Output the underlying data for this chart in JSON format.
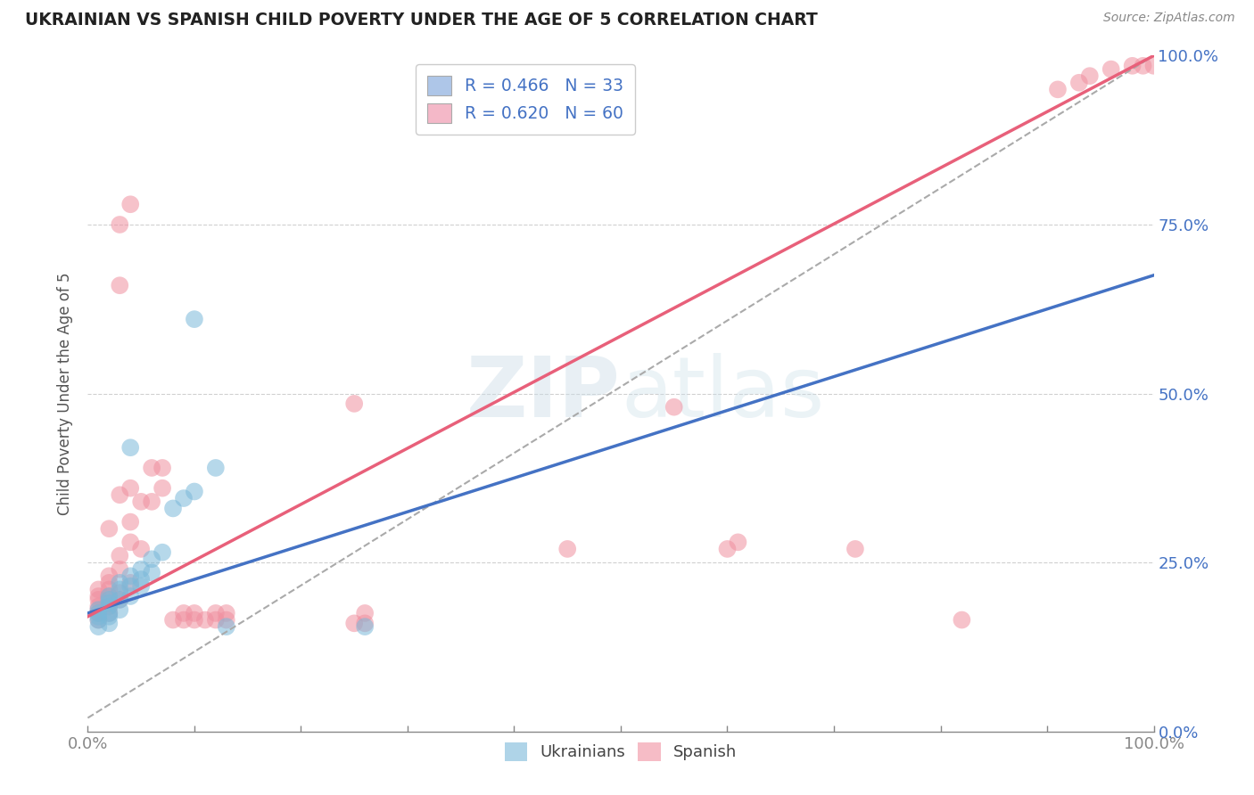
{
  "title": "UKRAINIAN VS SPANISH CHILD POVERTY UNDER THE AGE OF 5 CORRELATION CHART",
  "source_text": "Source: ZipAtlas.com",
  "ylabel": "Child Poverty Under the Age of 5",
  "watermark": "ZIPatlas",
  "legend_entries": [
    {
      "label": "R = 0.466   N = 33",
      "color": "#aec6e8"
    },
    {
      "label": "R = 0.620   N = 60",
      "color": "#f4b8c8"
    }
  ],
  "legend_labels_bottom": [
    "Ukrainians",
    "Spanish"
  ],
  "ukrainian_color": "#7ab8d9",
  "spanish_color": "#f090a0",
  "ukrainian_line_color": "#4472c4",
  "spanish_line_color": "#e8607a",
  "background_color": "#ffffff",
  "grid_color": "#d0d0d0",
  "title_color": "#222222",
  "axis_label_color": "#555555",
  "tick_label_color": "#4472c4",
  "xlim": [
    0,
    1
  ],
  "ylim": [
    0,
    1
  ],
  "xticks": [
    0.0,
    0.1,
    0.2,
    0.3,
    0.4,
    0.5,
    0.6,
    0.7,
    0.8,
    0.9,
    1.0
  ],
  "ytick_positions": [
    0.0,
    0.25,
    0.5,
    0.75,
    1.0
  ],
  "ytick_labels": [
    "0.0%",
    "25.0%",
    "50.0%",
    "75.0%",
    "100.0%"
  ],
  "ukrainian_line_intercept": 0.175,
  "ukrainian_line_slope": 0.5,
  "spanish_line_intercept": 0.17,
  "spanish_line_slope": 0.83,
  "ukrainian_points": [
    [
      0.01,
      0.155
    ],
    [
      0.01,
      0.165
    ],
    [
      0.01,
      0.17
    ],
    [
      0.01,
      0.175
    ],
    [
      0.01,
      0.18
    ],
    [
      0.02,
      0.16
    ],
    [
      0.02,
      0.17
    ],
    [
      0.02,
      0.175
    ],
    [
      0.02,
      0.185
    ],
    [
      0.02,
      0.19
    ],
    [
      0.02,
      0.195
    ],
    [
      0.02,
      0.2
    ],
    [
      0.03,
      0.18
    ],
    [
      0.03,
      0.195
    ],
    [
      0.03,
      0.21
    ],
    [
      0.03,
      0.22
    ],
    [
      0.04,
      0.2
    ],
    [
      0.04,
      0.215
    ],
    [
      0.04,
      0.23
    ],
    [
      0.05,
      0.215
    ],
    [
      0.05,
      0.225
    ],
    [
      0.05,
      0.24
    ],
    [
      0.06,
      0.235
    ],
    [
      0.06,
      0.255
    ],
    [
      0.07,
      0.265
    ],
    [
      0.08,
      0.33
    ],
    [
      0.09,
      0.345
    ],
    [
      0.1,
      0.355
    ],
    [
      0.12,
      0.39
    ],
    [
      0.04,
      0.42
    ],
    [
      0.1,
      0.61
    ],
    [
      0.13,
      0.155
    ],
    [
      0.26,
      0.155
    ]
  ],
  "spanish_points": [
    [
      0.01,
      0.165
    ],
    [
      0.01,
      0.175
    ],
    [
      0.01,
      0.18
    ],
    [
      0.01,
      0.185
    ],
    [
      0.01,
      0.195
    ],
    [
      0.01,
      0.2
    ],
    [
      0.01,
      0.21
    ],
    [
      0.02,
      0.175
    ],
    [
      0.02,
      0.185
    ],
    [
      0.02,
      0.195
    ],
    [
      0.02,
      0.2
    ],
    [
      0.02,
      0.21
    ],
    [
      0.02,
      0.22
    ],
    [
      0.02,
      0.23
    ],
    [
      0.02,
      0.3
    ],
    [
      0.03,
      0.195
    ],
    [
      0.03,
      0.205
    ],
    [
      0.03,
      0.24
    ],
    [
      0.03,
      0.26
    ],
    [
      0.03,
      0.35
    ],
    [
      0.04,
      0.22
    ],
    [
      0.04,
      0.28
    ],
    [
      0.04,
      0.31
    ],
    [
      0.04,
      0.36
    ],
    [
      0.05,
      0.27
    ],
    [
      0.05,
      0.34
    ],
    [
      0.06,
      0.34
    ],
    [
      0.06,
      0.39
    ],
    [
      0.07,
      0.36
    ],
    [
      0.07,
      0.39
    ],
    [
      0.08,
      0.165
    ],
    [
      0.09,
      0.165
    ],
    [
      0.09,
      0.175
    ],
    [
      0.1,
      0.165
    ],
    [
      0.1,
      0.175
    ],
    [
      0.11,
      0.165
    ],
    [
      0.12,
      0.165
    ],
    [
      0.12,
      0.175
    ],
    [
      0.13,
      0.165
    ],
    [
      0.13,
      0.175
    ],
    [
      0.25,
      0.16
    ],
    [
      0.26,
      0.16
    ],
    [
      0.26,
      0.175
    ],
    [
      0.45,
      0.27
    ],
    [
      0.03,
      0.66
    ],
    [
      0.03,
      0.75
    ],
    [
      0.04,
      0.78
    ],
    [
      0.25,
      0.485
    ],
    [
      0.55,
      0.48
    ],
    [
      0.6,
      0.27
    ],
    [
      0.61,
      0.28
    ],
    [
      0.72,
      0.27
    ],
    [
      0.82,
      0.165
    ],
    [
      0.91,
      0.95
    ],
    [
      0.93,
      0.96
    ],
    [
      0.94,
      0.97
    ],
    [
      0.96,
      0.98
    ],
    [
      0.98,
      0.985
    ],
    [
      0.99,
      0.985
    ],
    [
      1.0,
      0.985
    ]
  ]
}
